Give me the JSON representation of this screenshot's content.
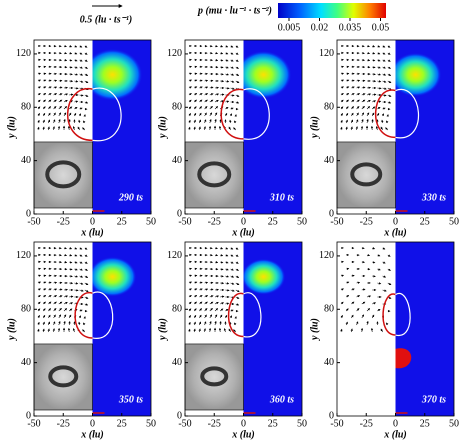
{
  "reference_vector": {
    "label": "0.5 (lu · ts⁻¹)"
  },
  "colorbar": {
    "title": "p (mu · lu⁻¹ · ts⁻²)",
    "ticks": [
      "0.005",
      "0.02",
      "0.035",
      "0.05"
    ]
  },
  "axes": {
    "xlabel": "x (lu)",
    "ylabel": "y (lu)",
    "xticks": [
      -50,
      -25,
      0,
      25,
      50
    ],
    "yticks": [
      0,
      40,
      80,
      120
    ]
  },
  "panels": [
    {
      "time": "290 ts"
    },
    {
      "time": "310 ts"
    },
    {
      "time": "330 ts"
    },
    {
      "time": "350 ts"
    },
    {
      "time": "360 ts"
    },
    {
      "time": "370 ts"
    }
  ]
}
